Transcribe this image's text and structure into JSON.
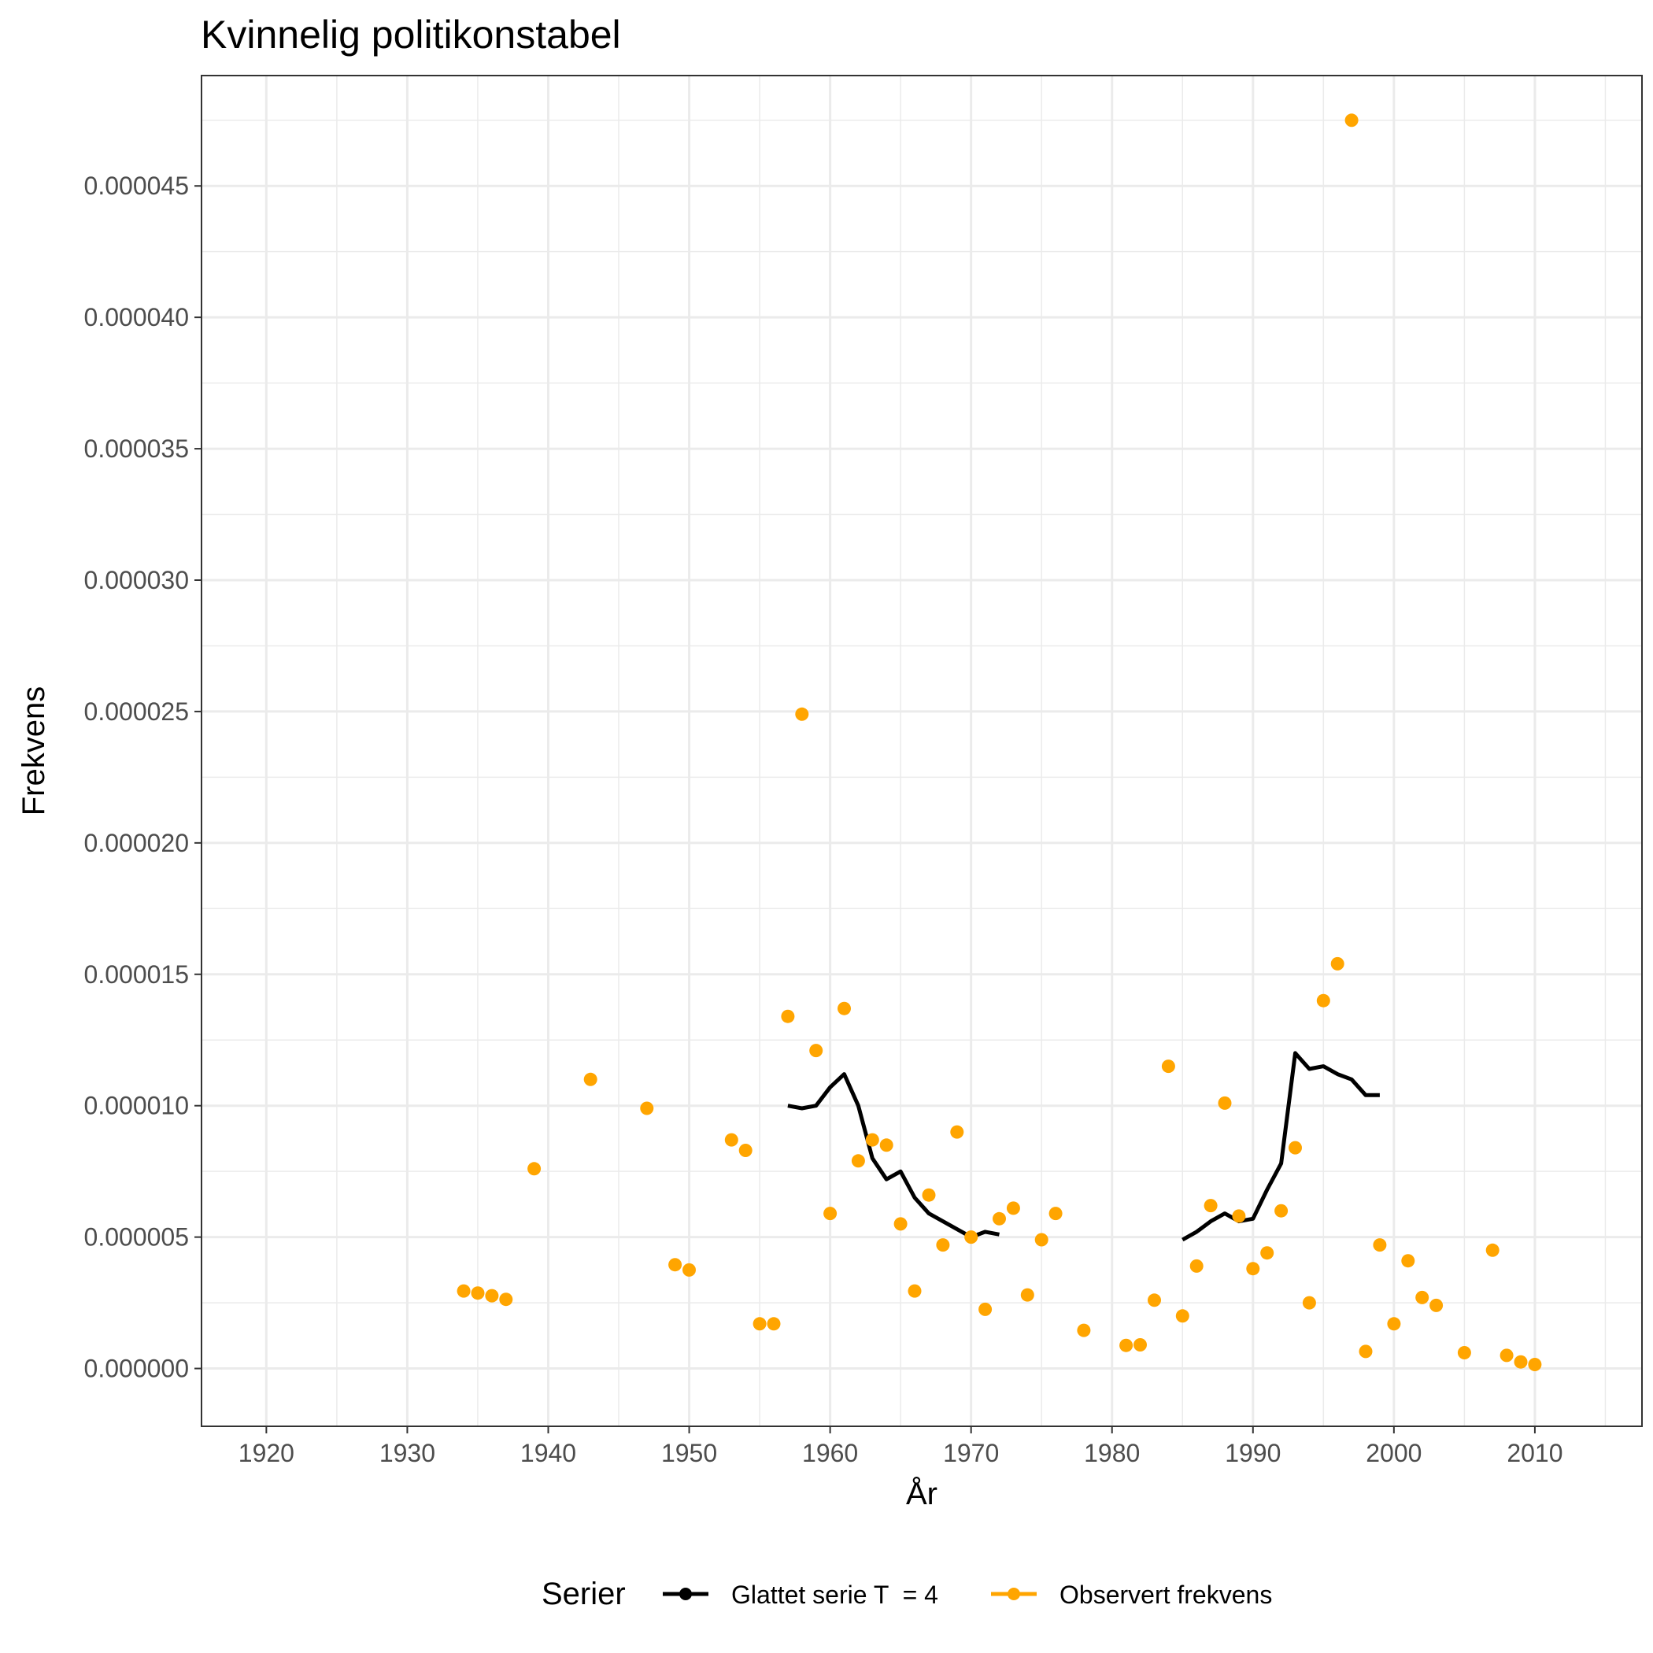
{
  "chart_data": {
    "type": "scatter",
    "title": "Kvinnelig politikonstabel",
    "xlabel": "År",
    "ylabel": "Frekvens",
    "xlim": [
      1915.4,
      2017.6
    ],
    "ylim": [
      -2.2e-06,
      4.92e-05
    ],
    "x_ticks": [
      1920,
      1930,
      1940,
      1950,
      1960,
      1970,
      1980,
      1990,
      2000,
      2010
    ],
    "x_tick_labels": [
      "1920",
      "1930",
      "1940",
      "1950",
      "1960",
      "1970",
      "1980",
      "1990",
      "2000",
      "2010"
    ],
    "y_ticks": [
      0,
      5e-06,
      1e-05,
      1.5e-05,
      2e-05,
      2.5e-05,
      3e-05,
      3.5e-05,
      4e-05,
      4.5e-05
    ],
    "y_tick_labels": [
      "0.000000",
      "0.000005",
      "0.000010",
      "0.000015",
      "0.000020",
      "0.000025",
      "0.000030",
      "0.000035",
      "0.000040",
      "0.000045"
    ],
    "grid": true,
    "legend": {
      "title": "Serier",
      "position": "bottom",
      "entries": [
        {
          "label": "Glattet serie T  = 4",
          "color": "#000000",
          "kind": "line"
        },
        {
          "label": "Observert frekvens",
          "color": "#FFA500",
          "kind": "point"
        }
      ]
    },
    "series": [
      {
        "name": "Observert frekvens",
        "type": "scatter",
        "color": "#FFA500",
        "points": [
          [
            1934,
            2.95e-06
          ],
          [
            1935,
            2.87e-06
          ],
          [
            1936,
            2.77e-06
          ],
          [
            1937,
            2.63e-06
          ],
          [
            1939,
            7.6e-06
          ],
          [
            1943,
            1.1e-05
          ],
          [
            1947,
            9.9e-06
          ],
          [
            1949,
            3.95e-06
          ],
          [
            1950,
            3.75e-06
          ],
          [
            1953,
            8.7e-06
          ],
          [
            1954,
            8.3e-06
          ],
          [
            1955,
            1.7e-06
          ],
          [
            1956,
            1.7e-06
          ],
          [
            1957,
            1.34e-05
          ],
          [
            1958,
            2.49e-05
          ],
          [
            1959,
            1.21e-05
          ],
          [
            1960,
            5.9e-06
          ],
          [
            1961,
            1.37e-05
          ],
          [
            1962,
            7.9e-06
          ],
          [
            1963,
            8.7e-06
          ],
          [
            1964,
            8.5e-06
          ],
          [
            1965,
            5.5e-06
          ],
          [
            1966,
            2.95e-06
          ],
          [
            1967,
            6.6e-06
          ],
          [
            1968,
            4.7e-06
          ],
          [
            1969,
            9e-06
          ],
          [
            1970,
            5e-06
          ],
          [
            1971,
            2.25e-06
          ],
          [
            1972,
            5.7e-06
          ],
          [
            1973,
            6.1e-06
          ],
          [
            1974,
            2.8e-06
          ],
          [
            1975,
            4.9e-06
          ],
          [
            1976,
            5.9e-06
          ],
          [
            1978,
            1.45e-06
          ],
          [
            1981,
            8.8e-07
          ],
          [
            1982,
            9e-07
          ],
          [
            1983,
            2.6e-06
          ],
          [
            1984,
            1.15e-05
          ],
          [
            1985,
            2e-06
          ],
          [
            1986,
            3.9e-06
          ],
          [
            1987,
            6.2e-06
          ],
          [
            1988,
            1.01e-05
          ],
          [
            1989,
            5.8e-06
          ],
          [
            1990,
            3.8e-06
          ],
          [
            1991,
            4.4e-06
          ],
          [
            1992,
            6e-06
          ],
          [
            1993,
            8.4e-06
          ],
          [
            1994,
            2.5e-06
          ],
          [
            1995,
            1.4e-05
          ],
          [
            1996,
            1.54e-05
          ],
          [
            1997,
            4.75e-05
          ],
          [
            1998,
            6.5e-07
          ],
          [
            1999,
            4.7e-06
          ],
          [
            2000,
            1.7e-06
          ],
          [
            2001,
            4.1e-06
          ],
          [
            2002,
            2.7e-06
          ],
          [
            2003,
            2.4e-06
          ],
          [
            2005,
            6e-07
          ],
          [
            2007,
            4.5e-06
          ],
          [
            2008,
            5e-07
          ],
          [
            2009,
            2.5e-07
          ],
          [
            2010,
            1.5e-07
          ]
        ]
      },
      {
        "name": "Glattet serie T  = 4",
        "type": "line",
        "color": "#000000",
        "segments": [
          [
            [
              1957,
              1e-05
            ],
            [
              1958,
              9.9e-06
            ],
            [
              1959,
              1e-05
            ],
            [
              1960,
              1.07e-05
            ],
            [
              1961,
              1.12e-05
            ],
            [
              1962,
              1e-05
            ],
            [
              1963,
              8e-06
            ],
            [
              1964,
              7.2e-06
            ],
            [
              1965,
              7.5e-06
            ],
            [
              1966,
              6.5e-06
            ],
            [
              1967,
              5.9e-06
            ],
            [
              1968,
              5.6e-06
            ],
            [
              1969,
              5.3e-06
            ],
            [
              1970,
              5e-06
            ],
            [
              1971,
              5.2e-06
            ],
            [
              1972,
              5.1e-06
            ]
          ],
          [
            [
              1985,
              4.9e-06
            ],
            [
              1986,
              5.2e-06
            ],
            [
              1987,
              5.6e-06
            ],
            [
              1988,
              5.9e-06
            ],
            [
              1989,
              5.6e-06
            ],
            [
              1990,
              5.7e-06
            ],
            [
              1991,
              6.8e-06
            ],
            [
              1992,
              7.8e-06
            ],
            [
              1993,
              1.2e-05
            ],
            [
              1994,
              1.14e-05
            ],
            [
              1995,
              1.15e-05
            ],
            [
              1996,
              1.12e-05
            ],
            [
              1997,
              1.1e-05
            ],
            [
              1998,
              1.04e-05
            ],
            [
              1999,
              1.04e-05
            ]
          ]
        ]
      }
    ]
  }
}
